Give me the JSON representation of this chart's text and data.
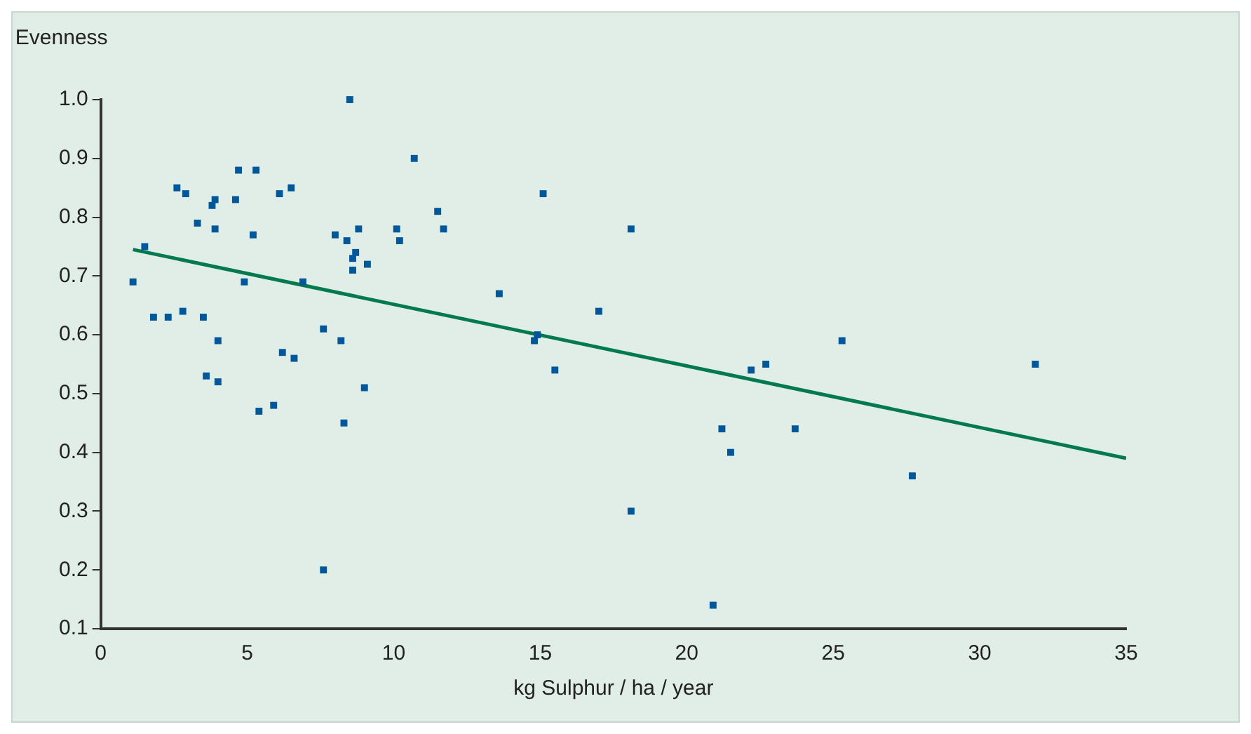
{
  "chart_data": {
    "type": "scatter",
    "xlabel": "kg Sulphur / ha / year",
    "ylabel": "Evenness",
    "xlim": [
      0,
      35
    ],
    "xticks": [
      0,
      5,
      10,
      15,
      20,
      25,
      30,
      35
    ],
    "ylim": [
      0.1,
      1.0
    ],
    "yticks": [
      0.1,
      0.2,
      0.3,
      0.4,
      0.5,
      0.6,
      0.7,
      0.8,
      0.9,
      {
        "value": 1.0,
        "label": "1.0"
      }
    ],
    "grid": false,
    "legend": false,
    "series": [
      {
        "marker": "square",
        "color": "#00589b",
        "x": [
          1.1,
          1.5,
          1.8,
          2.3,
          2.6,
          2.8,
          2.9,
          3.3,
          3.5,
          3.6,
          3.8,
          3.9,
          3.9,
          4.0,
          4.0,
          4.6,
          4.7,
          4.9,
          5.2,
          5.3,
          5.4,
          5.9,
          6.1,
          6.2,
          6.5,
          6.6,
          6.9,
          7.6,
          7.6,
          8.0,
          8.2,
          8.3,
          8.4,
          8.5,
          8.6,
          8.6,
          8.7,
          8.8,
          9.0,
          9.1,
          10.1,
          10.2,
          10.7,
          11.5,
          11.7,
          13.6,
          14.8,
          14.9,
          15.1,
          15.5,
          17.0,
          18.1,
          18.1,
          20.9,
          21.2,
          21.5,
          22.2,
          22.7,
          23.7,
          25.3,
          27.7,
          31.9
        ],
        "values": [
          0.69,
          0.75,
          0.63,
          0.63,
          0.85,
          0.64,
          0.84,
          0.79,
          0.63,
          0.53,
          0.82,
          0.83,
          0.78,
          0.59,
          0.52,
          0.83,
          0.88,
          0.69,
          0.77,
          0.88,
          0.47,
          0.48,
          0.84,
          0.57,
          0.85,
          0.56,
          0.69,
          0.61,
          0.2,
          0.77,
          0.59,
          0.45,
          0.76,
          1.0,
          0.73,
          0.71,
          0.74,
          0.78,
          0.51,
          0.72,
          0.78,
          0.76,
          0.9,
          0.81,
          0.78,
          0.67,
          0.59,
          0.6,
          0.84,
          0.54,
          0.64,
          0.78,
          0.3,
          0.14,
          0.44,
          0.4,
          0.54,
          0.55,
          0.44,
          0.59,
          0.36,
          0.55
        ]
      },
      {
        "type": "line",
        "color": "#007a4e",
        "x": [
          1.1,
          35
        ],
        "values": [
          0.745,
          0.39
        ]
      }
    ]
  }
}
